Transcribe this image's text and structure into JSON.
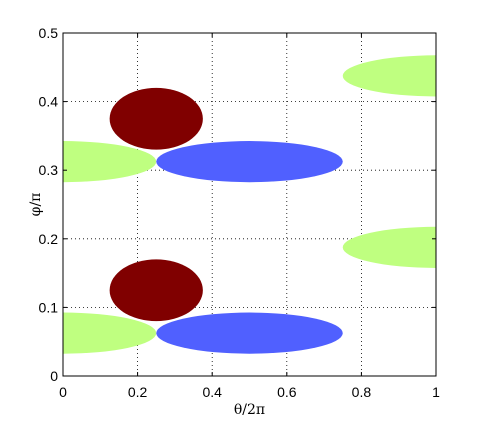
{
  "chart_data": {
    "type": "scatter",
    "title": "",
    "xlabel": "θ/2π",
    "ylabel": "φ/π",
    "xlim": [
      0,
      1
    ],
    "ylim": [
      0,
      0.5
    ],
    "xticks": [
      "0",
      "0.2",
      "0.4",
      "0.6",
      "0.8",
      "1"
    ],
    "yticks": [
      "0",
      "0.1",
      "0.2",
      "0.3",
      "0.4",
      "0.5"
    ],
    "grid": true,
    "legend": "none",
    "colors": {
      "green": "#bfff80",
      "blue": "#5060ff",
      "maroon": "#800000"
    },
    "ellipses": [
      {
        "color": "green",
        "cx": 1.0,
        "cy": 0.4375,
        "rx": 0.25,
        "ry": 0.03
      },
      {
        "color": "green",
        "cx": 0.0,
        "cy": 0.3125,
        "rx": 0.25,
        "ry": 0.03
      },
      {
        "color": "green",
        "cx": 1.0,
        "cy": 0.1875,
        "rx": 0.25,
        "ry": 0.03
      },
      {
        "color": "green",
        "cx": 0.0,
        "cy": 0.0625,
        "rx": 0.25,
        "ry": 0.03
      },
      {
        "color": "blue",
        "cx": 0.5,
        "cy": 0.3125,
        "rx": 0.25,
        "ry": 0.03
      },
      {
        "color": "blue",
        "cx": 0.5,
        "cy": 0.0625,
        "rx": 0.25,
        "ry": 0.03
      },
      {
        "color": "maroon",
        "cx": 0.25,
        "cy": 0.375,
        "rx": 0.125,
        "ry": 0.045
      },
      {
        "color": "maroon",
        "cx": 0.25,
        "cy": 0.125,
        "rx": 0.125,
        "ry": 0.045
      }
    ]
  }
}
